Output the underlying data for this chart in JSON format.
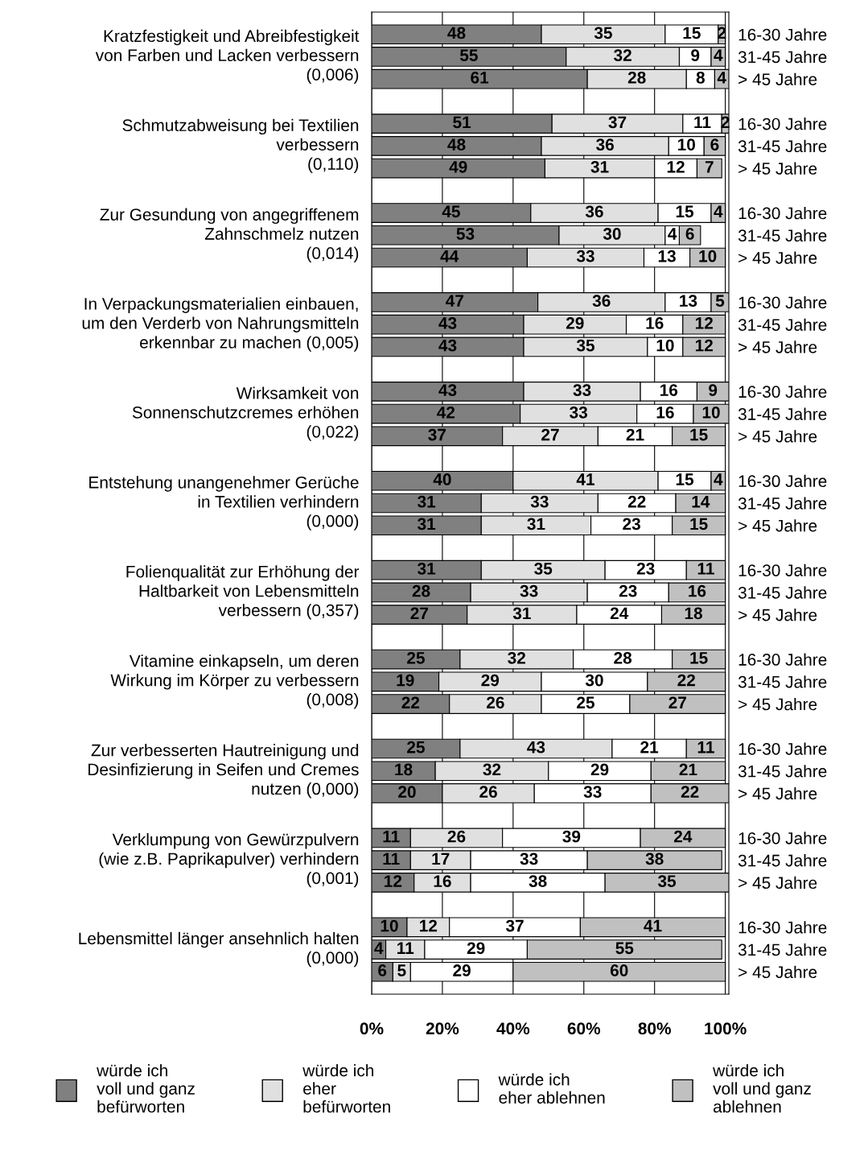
{
  "chart_data": {
    "type": "bar",
    "orientation": "horizontal",
    "stacked": true,
    "data_labels": true,
    "grid": "x",
    "legend": "bottom",
    "categories": [
      "16-30 Jahre",
      "31-45 Jahre",
      "> 45 Jahre",
      "16-30 Jahre",
      "31-45 Jahre",
      "> 45 Jahre",
      "16-30 Jahre",
      "31-45 Jahre",
      "> 45 Jahre",
      "16-30 Jahre",
      "31-45 Jahre",
      "> 45 Jahre",
      "16-30 Jahre",
      "31-45 Jahre",
      "> 45 Jahre",
      "16-30 Jahre",
      "31-45 Jahre",
      "> 45 Jahre",
      "16-30 Jahre",
      "31-45 Jahre",
      "> 45 Jahre",
      "16-30 Jahre",
      "31-45 Jahre",
      "> 45 Jahre",
      "16-30 Jahre",
      "31-45 Jahre",
      "> 45 Jahre",
      "16-30 Jahre",
      "31-45 Jahre",
      "> 45 Jahre",
      "16-30 Jahre",
      "31-45 Jahre",
      "> 45 Jahre"
    ],
    "annotations": [
      "Kratzfestigkeit und Abreibfestigkeit\nvon Farben und Lacken verbessern\n(0,006)",
      "Schmutzabweisung bei Textilien\nverbessern\n(0,110)",
      "Zur Gesundung von angegriffenem\nZahnschmelz nutzen\n(0,014)",
      "In Verpackungsmaterialien einbauen,\num den Verderb von Nahrungsmitteln\nerkennbar zu machen (0,005)",
      "Wirksamkeit von\nSonnenschutzcremes erhöhen\n(0,022)",
      "Entstehung unangenehmer Gerüche\nin Textilien verhindern\n(0,000)",
      "Folienqualität zur Erhöhung der\nHaltbarkeit von Lebensmitteln\nverbessern (0,357)",
      "Vitamine einkapseln, um deren\nWirkung im Körper zu verbessern\n(0,008)",
      "Zur verbesserten Hautreinigung und\nDesinfizierung in Seifen und Cremes\nnutzen (0,000)",
      "Verklumpung von Gewürzpulvern\n(wie z.B. Paprikapulver) verhindern\n(0,001)",
      "Lebensmittel länger ansehnlich halten\n(0,000)"
    ],
    "xlim": [
      0,
      101
    ],
    "xticks": [
      {
        "value": 0,
        "label": "0%"
      },
      {
        "value": 20,
        "label": "20%"
      },
      {
        "value": 40,
        "label": "40%"
      },
      {
        "value": 60,
        "label": "60%"
      },
      {
        "value": 80,
        "label": "80%"
      },
      {
        "value": 100,
        "label": "100%"
      }
    ],
    "series": [
      {
        "name": "würde ich\nvoll und ganz\nbefürworten",
        "color": "#808080",
        "values": [
          48,
          55,
          61,
          51,
          48,
          49,
          45,
          53,
          44,
          47,
          43,
          43,
          43,
          42,
          37,
          40,
          31,
          31,
          31,
          28,
          27,
          25,
          19,
          22,
          25,
          18,
          20,
          11,
          11,
          12,
          10,
          4,
          6
        ]
      },
      {
        "name": "würde ich\neher\nbefürworten",
        "color": "#e0e0e0",
        "values": [
          35,
          32,
          28,
          37,
          36,
          31,
          36,
          30,
          33,
          36,
          29,
          35,
          33,
          33,
          27,
          41,
          33,
          31,
          35,
          33,
          31,
          32,
          29,
          26,
          43,
          32,
          26,
          26,
          17,
          16,
          12,
          11,
          5
        ]
      },
      {
        "name": "würde ich\neher ablehnen",
        "color": "#ffffff",
        "values": [
          15,
          9,
          8,
          11,
          10,
          12,
          15,
          4,
          13,
          13,
          16,
          10,
          16,
          16,
          21,
          15,
          22,
          23,
          23,
          23,
          24,
          28,
          30,
          25,
          21,
          29,
          33,
          39,
          33,
          38,
          37,
          29,
          29
        ]
      },
      {
        "name": "würde ich\nvoll und ganz\nablehnen",
        "color": "#c0c0c0",
        "values": [
          2,
          4,
          4,
          2,
          6,
          7,
          4,
          6,
          10,
          5,
          12,
          12,
          9,
          10,
          15,
          4,
          14,
          15,
          11,
          16,
          18,
          15,
          22,
          27,
          11,
          21,
          22,
          24,
          38,
          35,
          41,
          55,
          60
        ]
      }
    ]
  }
}
